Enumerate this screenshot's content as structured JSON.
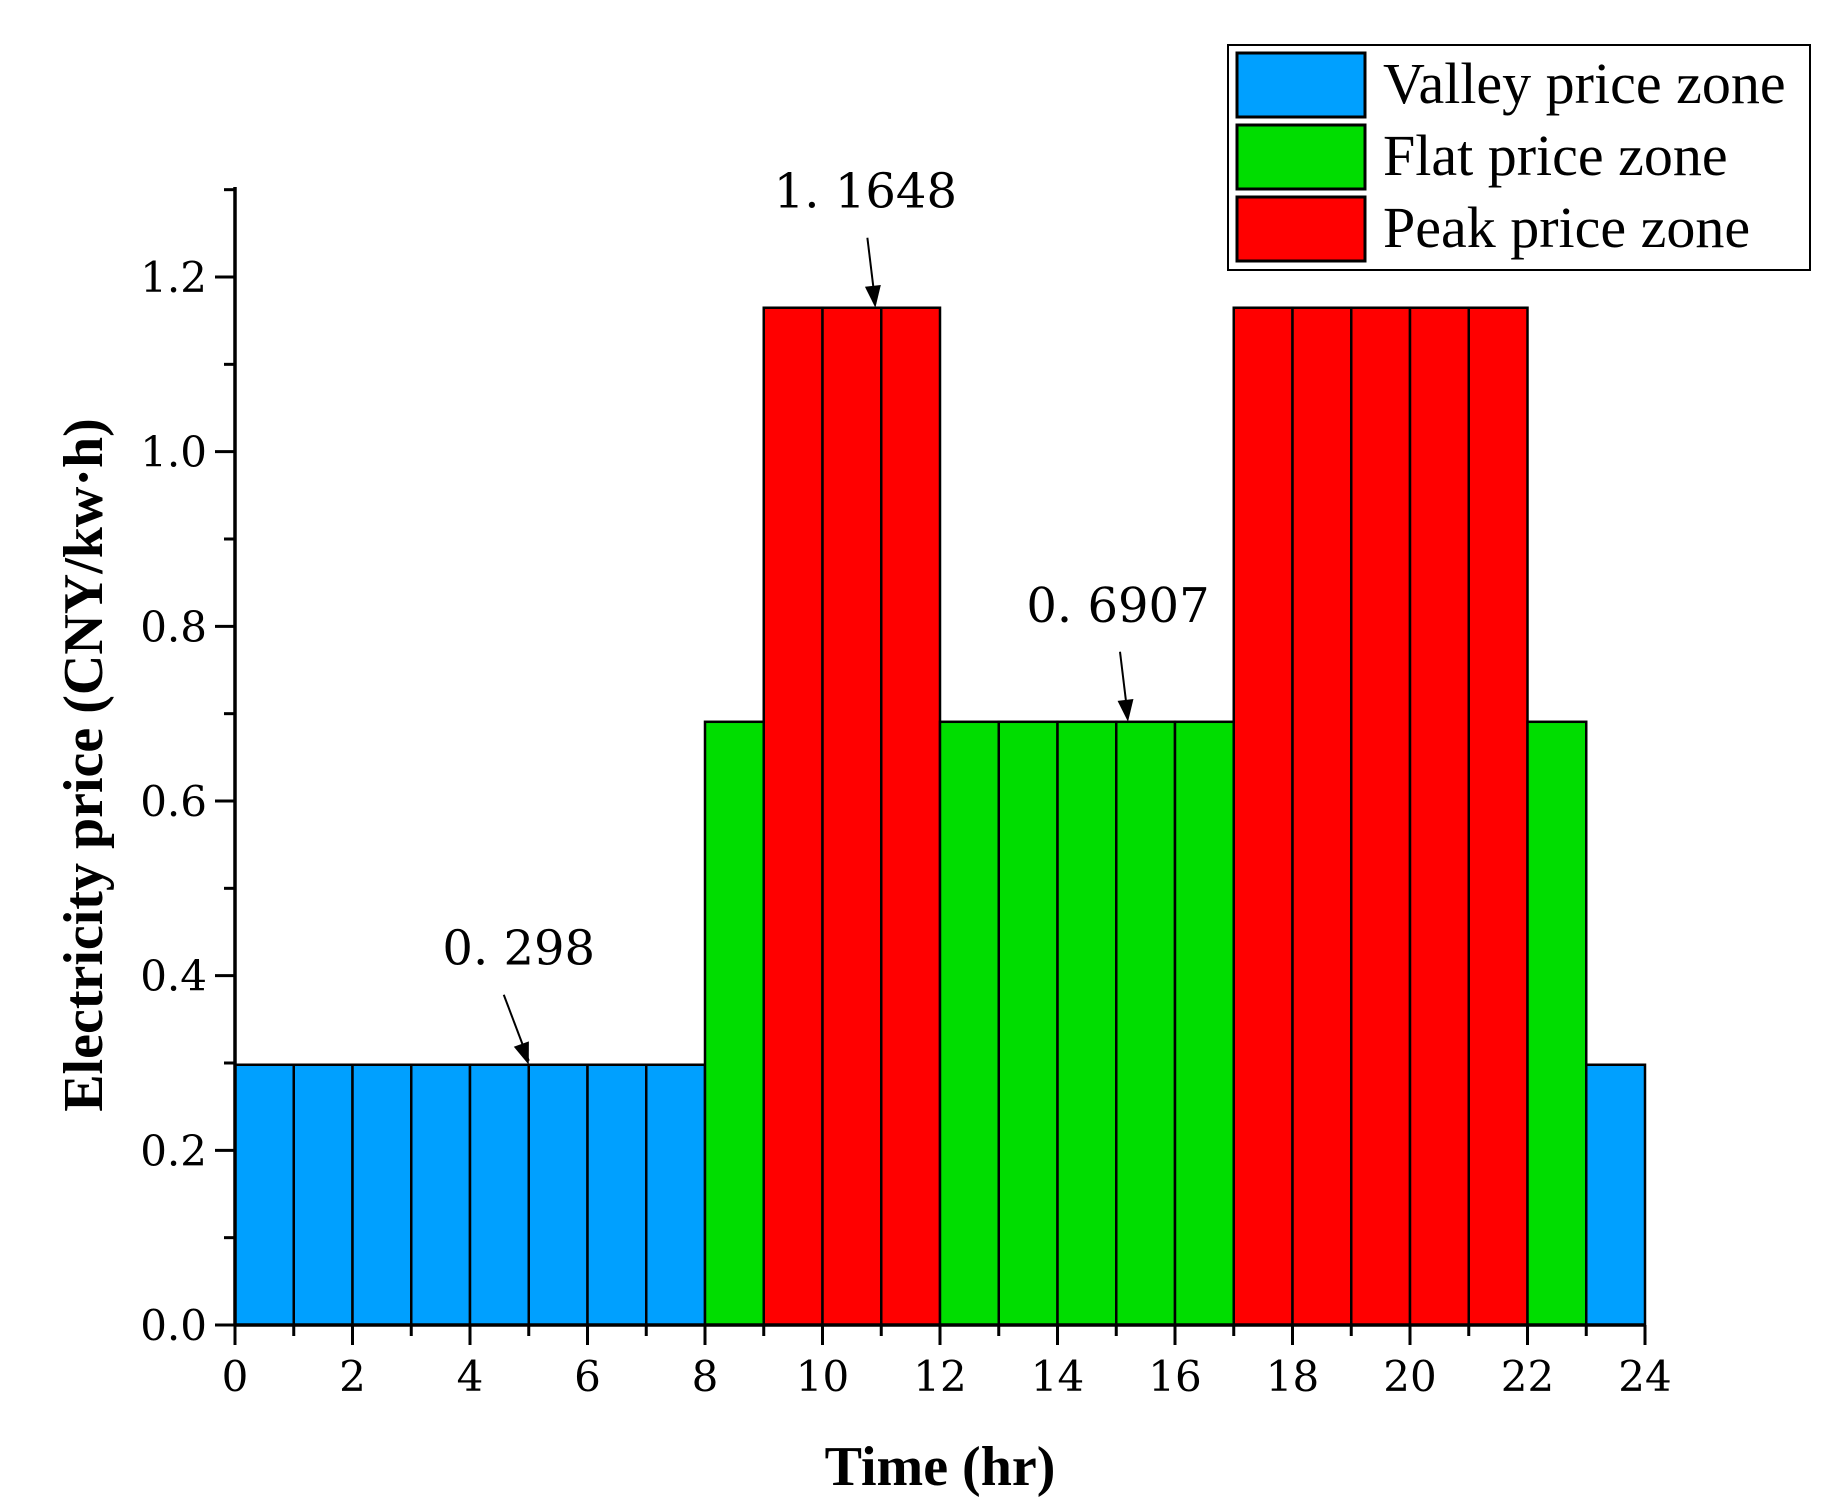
{
  "chart_data": {
    "type": "bar",
    "xlabel": "Time (hr)",
    "ylabel": "Electricity price (CNY/kw·h)",
    "xlim": [
      0,
      24
    ],
    "ylim": [
      0,
      1.3
    ],
    "x_ticks": [
      "0",
      "2",
      "4",
      "6",
      "8",
      "10",
      "12",
      "14",
      "16",
      "18",
      "20",
      "22",
      "24"
    ],
    "y_ticks": [
      "0.0",
      "0.2",
      "0.4",
      "0.6",
      "0.8",
      "1.0",
      "1.2"
    ],
    "hours": [
      0,
      1,
      2,
      3,
      4,
      5,
      6,
      7,
      8,
      9,
      10,
      11,
      12,
      13,
      14,
      15,
      16,
      17,
      18,
      19,
      20,
      21,
      22,
      23
    ],
    "values": [
      0.298,
      0.298,
      0.298,
      0.298,
      0.298,
      0.298,
      0.298,
      0.298,
      0.6907,
      1.1648,
      1.1648,
      1.1648,
      0.6907,
      0.6907,
      0.6907,
      0.6907,
      0.6907,
      1.1648,
      1.1648,
      1.1648,
      1.1648,
      1.1648,
      0.6907,
      0.298
    ],
    "zones": [
      "valley",
      "valley",
      "valley",
      "valley",
      "valley",
      "valley",
      "valley",
      "valley",
      "flat",
      "peak",
      "peak",
      "peak",
      "flat",
      "flat",
      "flat",
      "flat",
      "flat",
      "peak",
      "peak",
      "peak",
      "peak",
      "peak",
      "flat",
      "valley"
    ],
    "series": [
      {
        "key": "valley",
        "name": "Valley price zone",
        "color": "#00a0ff"
      },
      {
        "key": "flat",
        "name": "Flat price zone",
        "color": "#00dd00"
      },
      {
        "key": "peak",
        "name": "Peak price zone",
        "color": "#ff0000"
      }
    ],
    "annotations": [
      {
        "text": "1. 1648",
        "x": 10.9,
        "y": 1.1648
      },
      {
        "text": "0. 6907",
        "x": 15.2,
        "y": 0.6907
      },
      {
        "text": "0. 298",
        "x": 5.0,
        "y": 0.298
      }
    ],
    "legend_position": "top-right",
    "grid": false
  }
}
